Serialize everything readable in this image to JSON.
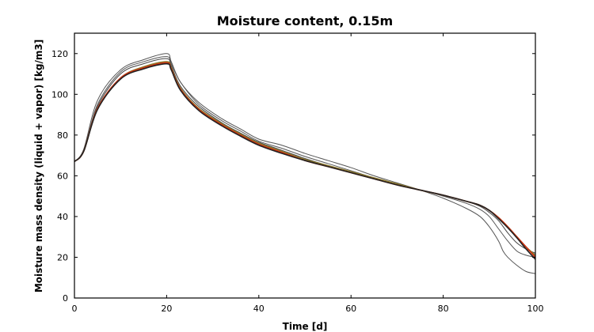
{
  "chart_data": {
    "type": "line",
    "title": "Moisture content, 0.15m",
    "xlabel": "Time [d]",
    "ylabel": "Moisture mass density (liquid + vapor) [kg/m3]",
    "xlim": [
      0,
      100
    ],
    "ylim": [
      0,
      130
    ],
    "xticks": [
      0,
      20,
      40,
      60,
      80,
      100
    ],
    "yticks": [
      0,
      20,
      40,
      60,
      80,
      100,
      120
    ],
    "grid": false,
    "series": [
      {
        "color": "#555555",
        "x": [
          0,
          2,
          5,
          10,
          15,
          20,
          21,
          23,
          27,
          32,
          36,
          40,
          45,
          50,
          55,
          60,
          65,
          70,
          75,
          80,
          85,
          88,
          90,
          92,
          93,
          94,
          96,
          98,
          100
        ],
        "y": [
          67,
          73,
          97,
          112,
          117,
          120,
          116,
          106,
          96,
          88,
          83,
          78,
          75,
          71,
          67.5,
          64,
          60,
          56.5,
          53,
          49,
          44,
          40,
          35,
          28,
          23,
          20,
          16,
          13,
          12
        ]
      },
      {
        "color": "#555555",
        "x": [
          0,
          2,
          5,
          10,
          15,
          20,
          21,
          23,
          27,
          32,
          36,
          40,
          45,
          50,
          55,
          60,
          65,
          70,
          75,
          80,
          85,
          88,
          90,
          92,
          94,
          96,
          98,
          100
        ],
        "y": [
          67,
          72,
          95,
          111,
          116,
          118.5,
          115,
          106,
          95,
          87,
          82,
          77,
          73.5,
          69.5,
          66,
          62.5,
          59,
          56,
          53,
          50,
          46.5,
          43.5,
          40,
          34,
          28,
          23,
          21,
          20
        ]
      },
      {
        "color": "#444444",
        "x": [
          0,
          2,
          5,
          10,
          15,
          20,
          21,
          23,
          27,
          32,
          36,
          40,
          45,
          50,
          55,
          60,
          65,
          70,
          75,
          80,
          85,
          88,
          90,
          92,
          94,
          96,
          98,
          100
        ],
        "y": [
          67,
          72,
          94,
          110,
          115,
          117.5,
          114,
          104,
          94,
          86,
          81,
          76.5,
          72.5,
          68.5,
          65,
          62,
          59,
          56,
          53,
          50.5,
          47.5,
          45,
          42,
          38,
          32,
          27,
          24,
          22
        ]
      },
      {
        "color": "#8a7a2a",
        "x": [
          0,
          2,
          5,
          10,
          15,
          20,
          21,
          23,
          27,
          32,
          36,
          40,
          45,
          50,
          55,
          60,
          65,
          70,
          75,
          80,
          85,
          88,
          90,
          92,
          94,
          96,
          98,
          100
        ],
        "y": [
          67,
          72,
          93,
          108,
          113.5,
          116,
          113,
          103,
          93,
          85.5,
          80.5,
          76,
          72,
          68,
          65,
          62,
          59,
          56,
          53,
          50.5,
          47.5,
          45.5,
          43,
          39.5,
          35,
          30,
          25,
          21
        ]
      },
      {
        "color": "#d03010",
        "x": [
          0,
          2,
          5,
          10,
          15,
          20,
          21,
          23,
          27,
          32,
          36,
          40,
          45,
          50,
          55,
          60,
          65,
          70,
          75,
          80,
          85,
          88,
          90,
          92,
          94,
          96,
          98,
          100
        ],
        "y": [
          67,
          72,
          93,
          108,
          113,
          115.5,
          112.5,
          102.5,
          92.5,
          85,
          80,
          75.5,
          71.5,
          67.5,
          64.5,
          61.5,
          58.5,
          55.5,
          53,
          50.5,
          47.5,
          45.5,
          43,
          39.5,
          35,
          30,
          25,
          20
        ]
      },
      {
        "color": "#222222",
        "x": [
          0,
          2,
          5,
          10,
          15,
          20,
          21,
          23,
          27,
          32,
          36,
          40,
          45,
          50,
          55,
          60,
          65,
          70,
          75,
          80,
          85,
          88,
          90,
          92,
          94,
          96,
          98,
          100
        ],
        "y": [
          67,
          72,
          92.5,
          107.5,
          112.5,
          115,
          112,
          102,
          92,
          84.5,
          79.5,
          75,
          71,
          67.5,
          64.5,
          61.5,
          58.5,
          55.5,
          53,
          50.5,
          47.5,
          45.5,
          43,
          39,
          34.5,
          29.5,
          24,
          19
        ]
      }
    ]
  }
}
